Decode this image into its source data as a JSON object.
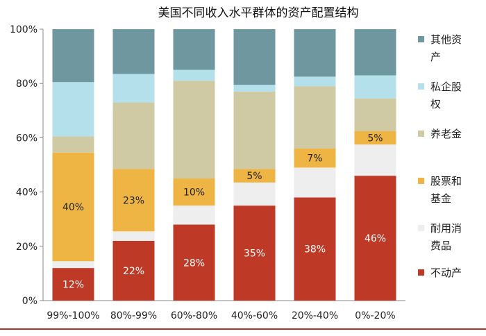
{
  "chart_data": {
    "type": "bar",
    "stacked": true,
    "percent": true,
    "title": "美国不同收入水平群体的资产配置结构",
    "xlabel": "",
    "ylabel": "",
    "ylim": [
      0,
      100
    ],
    "yticks": [
      "0%",
      "20%",
      "40%",
      "60%",
      "80%",
      "100%"
    ],
    "grid": false,
    "legend_position": "right",
    "categories": [
      "99%-100%",
      "80%-99%",
      "60%-80%",
      "40%-60%",
      "20%-40%",
      "0%-20%"
    ],
    "series": [
      {
        "name": "不动产",
        "color": "#BE3A26",
        "label_color": "#ffffff",
        "values": [
          12,
          22,
          28,
          35,
          38,
          46
        ],
        "labels": [
          "12%",
          "22%",
          "28%",
          "35%",
          "38%",
          "46%"
        ]
      },
      {
        "name": "耐用消费品",
        "color": "#EEEEEF",
        "values": [
          2.5,
          3.5,
          7,
          8.5,
          11,
          11.5
        ],
        "labels": [
          "",
          "",
          "",
          "",
          "",
          ""
        ]
      },
      {
        "name": "股票和基金",
        "color": "#EEB544",
        "label_color": "#222222",
        "values": [
          40,
          23,
          10,
          5,
          7,
          5
        ],
        "labels": [
          "40%",
          "23%",
          "10%",
          "5%",
          "7%",
          "5%"
        ]
      },
      {
        "name": "养老金",
        "color": "#D0CAA4",
        "values": [
          6,
          24.5,
          36,
          28.5,
          23,
          12
        ],
        "labels": [
          "",
          "",
          "",
          "",
          "",
          ""
        ]
      },
      {
        "name": "私企股权",
        "color": "#B3E0EA",
        "values": [
          20,
          10.5,
          4,
          2.5,
          3.5,
          8.5
        ],
        "labels": [
          "",
          "",
          "",
          "",
          "",
          ""
        ]
      },
      {
        "name": "其他资产",
        "color": "#6E97A0",
        "values": [
          19.5,
          16.5,
          15,
          20.5,
          17.5,
          17
        ],
        "labels": [
          "",
          "",
          "",
          "",
          "",
          ""
        ]
      }
    ],
    "legend": [
      {
        "name": "其他资产",
        "lines": [
          "其他资",
          "产"
        ],
        "color": "#6E97A0"
      },
      {
        "name": "私企股权",
        "lines": [
          "私企股",
          "权"
        ],
        "color": "#B3E0EA"
      },
      {
        "name": "养老金",
        "lines": [
          "养老金"
        ],
        "color": "#D0CAA4"
      },
      {
        "name": "股票和基金",
        "lines": [
          "股票和",
          "基金"
        ],
        "color": "#EEB544"
      },
      {
        "name": "耐用消费品",
        "lines": [
          "耐用消",
          "费品"
        ],
        "color": "#EEEEEF"
      },
      {
        "name": "不动产",
        "lines": [
          "不动产"
        ],
        "color": "#BE3A26"
      }
    ]
  }
}
